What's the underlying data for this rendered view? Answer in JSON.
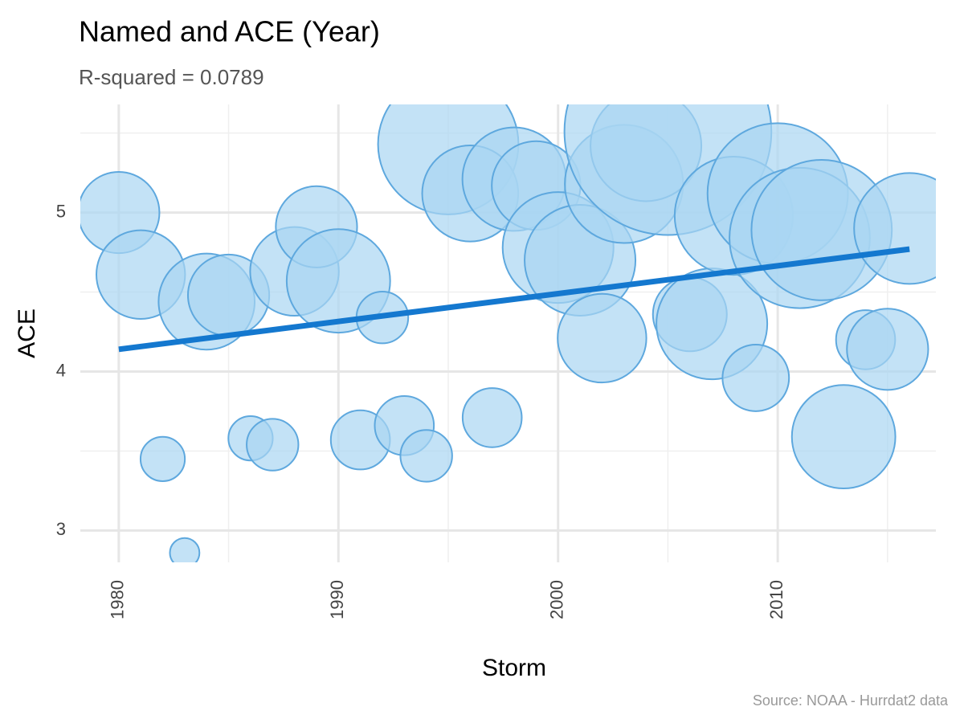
{
  "chart_data": {
    "type": "bubble",
    "title": "Named and ACE (Year)",
    "subtitle": "R-squared =  0.0789",
    "x_label": "Storm",
    "y_label": "ACE",
    "caption": "Source: NOAA - Hurrdat2 data",
    "x": [
      1980,
      1981,
      1982,
      1983,
      1984,
      1985,
      1986,
      1987,
      1988,
      1989,
      1990,
      1991,
      1992,
      1993,
      1994,
      1995,
      1996,
      1997,
      1998,
      1999,
      2000,
      2001,
      2002,
      2003,
      2004,
      2005,
      2006,
      2007,
      2008,
      2009,
      2010,
      2011,
      2012,
      2013,
      2014,
      2015,
      2016
    ],
    "values": [
      5.0,
      4.61,
      3.45,
      2.86,
      4.44,
      4.48,
      3.58,
      3.54,
      4.63,
      4.91,
      4.57,
      3.57,
      4.34,
      3.66,
      3.47,
      5.43,
      5.12,
      3.71,
      5.21,
      5.17,
      4.78,
      4.7,
      4.21,
      5.18,
      5.42,
      5.51,
      4.36,
      4.3,
      4.98,
      3.96,
      5.12,
      4.84,
      4.89,
      3.59,
      4.2,
      4.14,
      4.9
    ],
    "sizes": [
      11,
      12,
      6,
      4,
      13,
      11,
      6,
      7,
      12,
      11,
      14,
      8,
      7,
      8,
      7,
      19,
      13,
      8,
      14,
      12,
      15,
      15,
      12,
      16,
      15,
      28,
      10,
      15,
      16,
      9,
      19,
      19,
      19,
      14,
      8,
      11,
      15
    ],
    "color": "#a9d5f2",
    "stroke": "#5ea8de",
    "trend": {
      "x": [
        1980,
        2016
      ],
      "values": [
        4.14,
        4.77
      ],
      "color": "#1478cf"
    },
    "xlim": [
      1978.25,
      2017.2
    ],
    "ylim": [
      2.8,
      5.68
    ],
    "xticks": [
      1980,
      1990,
      2000,
      2010
    ],
    "yticks": [
      3,
      4,
      5
    ],
    "xminor": [
      1985,
      1995,
      2005,
      2015
    ],
    "yminor": [
      3.5,
      4.5,
      5.5
    ],
    "grid": true
  }
}
